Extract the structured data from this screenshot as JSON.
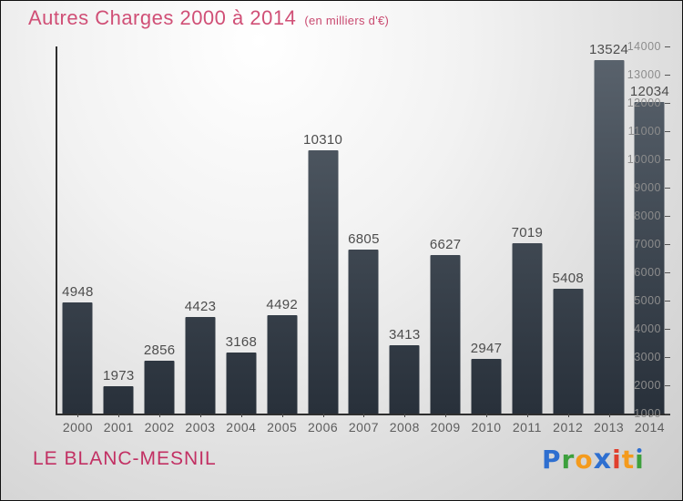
{
  "header": {
    "title": "Autres Charges 2000 à 2014",
    "subtitle": "(en milliers d'€)",
    "title_color": "#d04f76",
    "subtitle_color": "#c94a70"
  },
  "chart_data": {
    "type": "bar",
    "title": "Autres Charges 2000 à 2014 (en milliers d'€)",
    "categories": [
      "2000",
      "2001",
      "2002",
      "2003",
      "2004",
      "2005",
      "2006",
      "2007",
      "2008",
      "2009",
      "2010",
      "2011",
      "2012",
      "2013",
      "2014"
    ],
    "values": [
      4948,
      1973,
      2856,
      4423,
      3168,
      4492,
      10310,
      6805,
      3413,
      6627,
      2947,
      7019,
      5408,
      13524,
      12034
    ],
    "xlabel": "",
    "ylabel": "",
    "ylim": [
      1000,
      14000
    ],
    "ytick_step": 1000,
    "grid": false,
    "legend": false,
    "bar_color_top": "#5b646e",
    "bar_color_bottom": "#28303a"
  },
  "footer": {
    "location": "LE BLANC-MESNIL",
    "location_color": "#c23063",
    "logo": {
      "text": "Proxiti",
      "letters": [
        {
          "ch": "P",
          "color": "#2e6fd0"
        },
        {
          "ch": "r",
          "color": "#3da03d"
        },
        {
          "ch": "o",
          "color": "#f49b1d"
        },
        {
          "ch": "x",
          "color": "#2e6fd0",
          "bold": true
        },
        {
          "ch": "i",
          "color": "#e0402e"
        },
        {
          "ch": "t",
          "color": "#f49b1d"
        },
        {
          "ch": "i",
          "color": "#3da03d",
          "dot_color": "#2e6fd0"
        }
      ]
    }
  }
}
